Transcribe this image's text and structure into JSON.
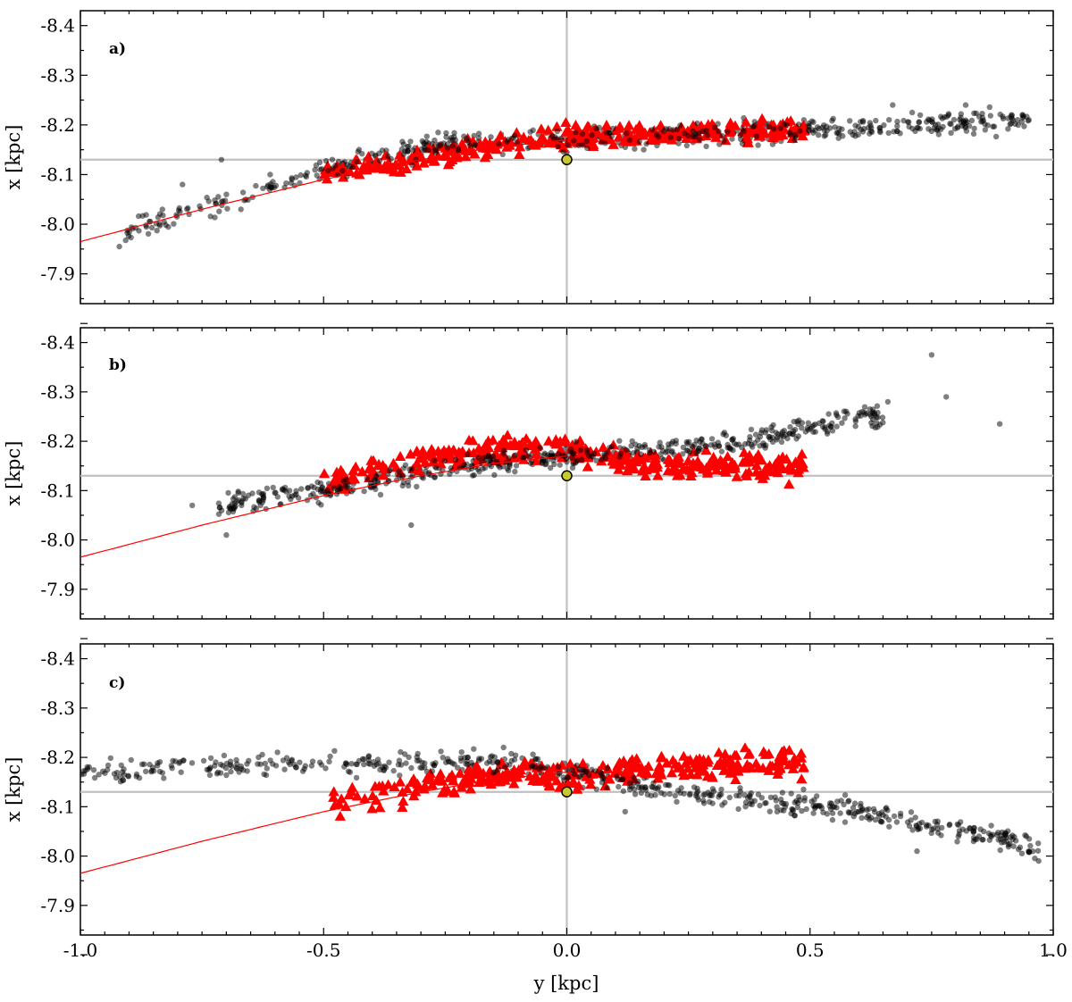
{
  "figure": {
    "xlabel": "y [kpc]"
  },
  "colors": {
    "dots": "#000000",
    "triangles": "#ff0000",
    "curve": "#ff0000",
    "ref_lines": "#c0c0c0",
    "sun_marker": "#c8c832"
  },
  "chart_data": [
    {
      "type": "scatter",
      "panel_label": "a)",
      "xlabel": "",
      "ylabel": "x [kpc]",
      "xlim": [
        -1.0,
        1.0
      ],
      "ylim": [
        -8.43,
        -7.84
      ],
      "y_inverted": true,
      "x_ticks": [
        "-1.0",
        "-0.5",
        "0.0",
        "0.5",
        "1.0"
      ],
      "y_ticks": [
        "-8.4",
        "-8.3",
        "-8.2",
        "-8.1",
        "-8.0",
        "-7.9"
      ],
      "reference_lines": {
        "x": 0.0,
        "y": -8.13
      },
      "sun": {
        "x": 0.0,
        "y": -8.13
      },
      "curve": {
        "x": [
          -1.0,
          -0.75,
          -0.5,
          -0.3,
          -0.15,
          0.0
        ],
        "y": [
          -7.965,
          -8.03,
          -8.09,
          -8.13,
          -8.155,
          -8.17
        ]
      },
      "series": [
        {
          "marker": "dot",
          "cluster": {
            "trend_x": [
              -0.95,
              -0.5,
              -0.2,
              0.0,
              0.5,
              0.95
            ],
            "trend_y": [
              -7.97,
              -8.11,
              -8.17,
              -8.17,
              -8.19,
              -8.21
            ],
            "x_range": [
              -0.92,
              0.95
            ],
            "scatter": 0.025,
            "count": 560
          },
          "outliers": [
            [
              -0.92,
              -7.955
            ],
            [
              -0.79,
              -8.08
            ],
            [
              -0.71,
              -8.13
            ],
            [
              -0.7,
              -8.06
            ],
            [
              -0.66,
              -8.05
            ],
            [
              -0.67,
              -8.03
            ],
            [
              -0.61,
              -8.1
            ],
            [
              0.67,
              -8.24
            ],
            [
              0.71,
              -8.225
            ],
            [
              0.76,
              -8.19
            ],
            [
              0.82,
              -8.24
            ],
            [
              0.86,
              -8.19
            ],
            [
              0.95,
              -8.21
            ]
          ]
        },
        {
          "marker": "triangle",
          "cluster": {
            "trend_x": [
              -0.5,
              -0.2,
              0.0,
              0.2,
              0.48
            ],
            "trend_y": [
              -8.1,
              -8.15,
              -8.18,
              -8.18,
              -8.19
            ],
            "x_range": [
              -0.5,
              0.49
            ],
            "scatter": 0.025,
            "count": 320
          }
        }
      ]
    },
    {
      "type": "scatter",
      "panel_label": "b)",
      "xlabel": "",
      "ylabel": "x [kpc]",
      "xlim": [
        -1.0,
        1.0
      ],
      "ylim": [
        -8.43,
        -7.84
      ],
      "y_inverted": true,
      "x_ticks": [
        "-1.0",
        "-0.5",
        "0.0",
        "0.5",
        "1.0"
      ],
      "y_ticks": [
        "-8.4",
        "-8.3",
        "-8.2",
        "-8.1",
        "-8.0",
        "-7.9"
      ],
      "reference_lines": {
        "x": 0.0,
        "y": -8.13
      },
      "sun": {
        "x": 0.0,
        "y": -8.13
      },
      "curve": {
        "x": [
          -1.0,
          -0.75,
          -0.5,
          -0.3,
          -0.15,
          0.0
        ],
        "y": [
          -7.965,
          -8.03,
          -8.09,
          -8.13,
          -8.155,
          -8.17
        ]
      },
      "series": [
        {
          "marker": "dot",
          "cluster": {
            "trend_x": [
              -0.8,
              -0.5,
              -0.2,
              0.0,
              0.3,
              0.6
            ],
            "trend_y": [
              -8.06,
              -8.1,
              -8.15,
              -8.17,
              -8.19,
              -8.25
            ],
            "x_range": [
              -0.72,
              0.65
            ],
            "scatter": 0.025,
            "count": 560
          },
          "outliers": [
            [
              -0.77,
              -8.07
            ],
            [
              -0.7,
              -8.01
            ],
            [
              -0.32,
              -8.03
            ],
            [
              0.66,
              -8.28
            ],
            [
              0.75,
              -8.375
            ],
            [
              0.78,
              -8.29
            ],
            [
              0.89,
              -8.235
            ]
          ]
        },
        {
          "marker": "triangle",
          "cluster": {
            "trend_x": [
              -0.5,
              -0.2,
              0.0,
              0.2,
              0.48
            ],
            "trend_y": [
              -8.12,
              -8.18,
              -8.18,
              -8.15,
              -8.15
            ],
            "x_range": [
              -0.5,
              0.49
            ],
            "scatter": 0.03,
            "count": 340
          }
        }
      ]
    },
    {
      "type": "scatter",
      "panel_label": "c)",
      "xlabel": "y [kpc]",
      "ylabel": "x [kpc]",
      "xlim": [
        -1.0,
        1.0
      ],
      "ylim": [
        -8.43,
        -7.84
      ],
      "y_inverted": true,
      "x_ticks": [
        "-1.0",
        "-0.5",
        "0.0",
        "0.5",
        "1.0"
      ],
      "y_ticks": [
        "-8.4",
        "-8.3",
        "-8.2",
        "-8.1",
        "-8.0",
        "-7.9"
      ],
      "reference_lines": {
        "x": 0.0,
        "y": -8.13
      },
      "sun": {
        "x": 0.0,
        "y": -8.13
      },
      "curve": {
        "x": [
          -1.0,
          -0.75,
          -0.5,
          -0.3,
          -0.15,
          0.0
        ],
        "y": [
          -7.965,
          -8.03,
          -8.09,
          -8.13,
          -8.155,
          -8.17
        ]
      },
      "series": [
        {
          "marker": "dot",
          "cluster": {
            "trend_x": [
              -1.0,
              -0.5,
              -0.1,
              0.0,
              0.3,
              0.6,
              0.97
            ],
            "trend_y": [
              -8.17,
              -8.19,
              -8.19,
              -8.17,
              -8.12,
              -8.09,
              -8.02
            ],
            "x_range": [
              -1.0,
              0.97
            ],
            "scatter": 0.025,
            "count": 600
          },
          "outliers": [
            [
              -0.13,
              -8.22
            ],
            [
              0.12,
              -8.09
            ],
            [
              0.55,
              -8.1
            ],
            [
              0.95,
              -8.01
            ],
            [
              0.97,
              -7.99
            ],
            [
              0.72,
              -8.01
            ]
          ]
        },
        {
          "marker": "triangle",
          "cluster": {
            "trend_x": [
              -0.48,
              -0.2,
              0.0,
              0.2,
              0.48
            ],
            "trend_y": [
              -8.11,
              -8.16,
              -8.16,
              -8.18,
              -8.19
            ],
            "x_range": [
              -0.48,
              0.49
            ],
            "scatter": 0.03,
            "count": 300
          }
        }
      ]
    }
  ]
}
